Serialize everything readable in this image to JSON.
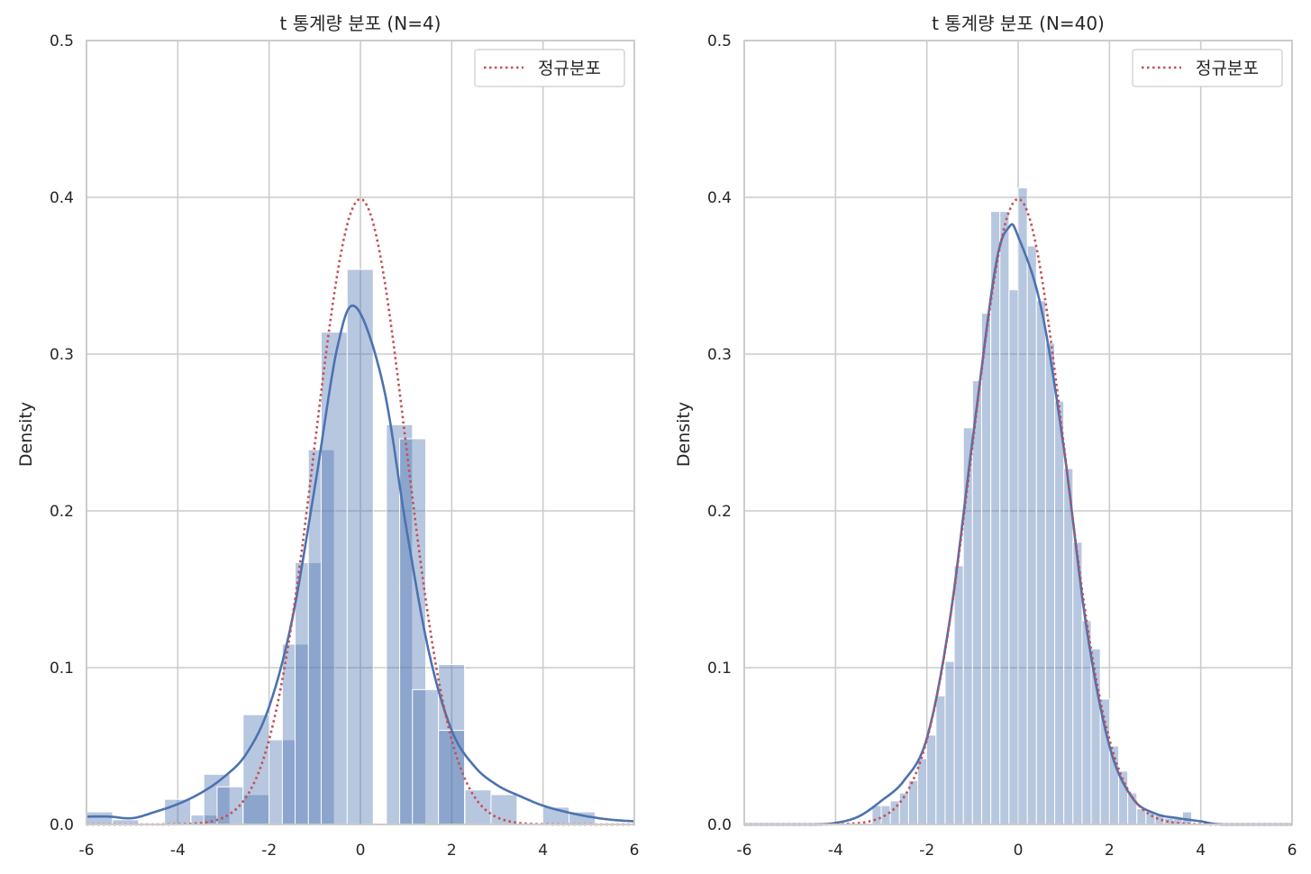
{
  "chart_data": [
    {
      "type": "histogram",
      "title": "t 통계량 분포 (N=4)",
      "xlabel": "",
      "ylabel": "Density",
      "xlim": [
        -6,
        6
      ],
      "ylim": [
        0,
        0.5
      ],
      "xticks": [
        "-6",
        "-4",
        "-2",
        "0",
        "2",
        "4",
        "6"
      ],
      "yticks": [
        "0.0",
        "0.1",
        "0.2",
        "0.3",
        "0.4",
        "0.5"
      ],
      "grid": true,
      "legend": {
        "position": "top-right",
        "entries": [
          "정규분포"
        ]
      },
      "histogram": {
        "bin_width": 0.5714,
        "bars": [
          {
            "x0": -6.0,
            "density": 0.008
          },
          {
            "x0": -5.43,
            "density": 0.003
          },
          {
            "x0": -4.29,
            "density": 0.016
          },
          {
            "x0": -3.71,
            "density": 0.006
          },
          {
            "x0": -3.43,
            "density": 0.032
          },
          {
            "x0": -3.14,
            "density": 0.024
          },
          {
            "x0": -2.57,
            "density": 0.019
          },
          {
            "x0": -2.57,
            "density": 0.07
          },
          {
            "x0": -2.0,
            "density": 0.054
          },
          {
            "x0": -1.71,
            "density": 0.115
          },
          {
            "x0": -1.43,
            "density": 0.167
          },
          {
            "x0": -1.14,
            "density": 0.239
          },
          {
            "x0": -0.86,
            "density": 0.314
          },
          {
            "x0": -0.29,
            "density": 0.354
          },
          {
            "x0": 0.57,
            "density": 0.255
          },
          {
            "x0": 0.86,
            "density": 0.246
          },
          {
            "x0": 1.14,
            "density": 0.086
          },
          {
            "x0": 1.71,
            "density": 0.102
          },
          {
            "x0": 1.71,
            "density": 0.06
          },
          {
            "x0": 2.29,
            "density": 0.022
          },
          {
            "x0": 2.86,
            "density": 0.019
          },
          {
            "x0": 4.0,
            "density": 0.011
          },
          {
            "x0": 4.57,
            "density": 0.008
          }
        ]
      },
      "series": [
        {
          "name": "",
          "style": "solid",
          "color": "#4c72b0",
          "x": [
            -6,
            -5.5,
            -5,
            -4.5,
            -4,
            -3.5,
            -3,
            -2.5,
            -2,
            -1.5,
            -1,
            -0.5,
            -0.1,
            0.5,
            1,
            1.5,
            2,
            2.5,
            3,
            3.5,
            4,
            4.5,
            5,
            5.5,
            6
          ],
          "y": [
            0.005,
            0.005,
            0.004,
            0.008,
            0.013,
            0.02,
            0.03,
            0.045,
            0.075,
            0.13,
            0.215,
            0.305,
            0.33,
            0.28,
            0.19,
            0.11,
            0.06,
            0.037,
            0.025,
            0.018,
            0.012,
            0.008,
            0.005,
            0.003,
            0.002
          ]
        },
        {
          "name": "정규분포",
          "style": "dotted",
          "color": "#c44e52",
          "function": "normal_pdf",
          "mu": 0,
          "sigma": 1
        }
      ]
    },
    {
      "type": "histogram",
      "title": "t 통계량 분포 (N=40)",
      "xlabel": "",
      "ylabel": "Density",
      "xlim": [
        -6,
        6
      ],
      "ylim": [
        0,
        0.5
      ],
      "xticks": [
        "-6",
        "-4",
        "-2",
        "0",
        "2",
        "4",
        "6"
      ],
      "yticks": [
        "0.0",
        "0.1",
        "0.2",
        "0.3",
        "0.4",
        "0.5"
      ],
      "grid": true,
      "legend": {
        "position": "top-right",
        "entries": [
          "정규분포"
        ]
      },
      "histogram": {
        "bin_width": 0.2,
        "bars": [
          {
            "x0": -3.2,
            "density": 0.012
          },
          {
            "x0": -3.0,
            "density": 0.012
          },
          {
            "x0": -2.8,
            "density": 0.015
          },
          {
            "x0": -2.6,
            "density": 0.02
          },
          {
            "x0": -2.4,
            "density": 0.028
          },
          {
            "x0": -2.2,
            "density": 0.042
          },
          {
            "x0": -2.0,
            "density": 0.057
          },
          {
            "x0": -1.8,
            "density": 0.082
          },
          {
            "x0": -1.6,
            "density": 0.104
          },
          {
            "x0": -1.4,
            "density": 0.165
          },
          {
            "x0": -1.2,
            "density": 0.253
          },
          {
            "x0": -1.0,
            "density": 0.283
          },
          {
            "x0": -0.8,
            "density": 0.326
          },
          {
            "x0": -0.6,
            "density": 0.391
          },
          {
            "x0": -0.4,
            "density": 0.391
          },
          {
            "x0": -0.2,
            "density": 0.341
          },
          {
            "x0": 0.0,
            "density": 0.406
          },
          {
            "x0": 0.2,
            "density": 0.369
          },
          {
            "x0": 0.4,
            "density": 0.334
          },
          {
            "x0": 0.6,
            "density": 0.307
          },
          {
            "x0": 0.8,
            "density": 0.27
          },
          {
            "x0": 1.0,
            "density": 0.227
          },
          {
            "x0": 1.2,
            "density": 0.18
          },
          {
            "x0": 1.4,
            "density": 0.13
          },
          {
            "x0": 1.6,
            "density": 0.112
          },
          {
            "x0": 1.8,
            "density": 0.08
          },
          {
            "x0": 2.0,
            "density": 0.05
          },
          {
            "x0": 2.2,
            "density": 0.034
          },
          {
            "x0": 2.4,
            "density": 0.02
          },
          {
            "x0": 2.6,
            "density": 0.01
          },
          {
            "x0": 2.8,
            "density": 0.008
          },
          {
            "x0": 3.0,
            "density": 0.006
          },
          {
            "x0": 3.2,
            "density": 0.004
          },
          {
            "x0": 3.4,
            "density": 0.004
          },
          {
            "x0": 3.6,
            "density": 0.008
          }
        ]
      },
      "series": [
        {
          "name": "",
          "style": "solid",
          "color": "#4c72b0",
          "x": [
            -6,
            -4.5,
            -4,
            -3.5,
            -3,
            -2.5,
            -2,
            -1.5,
            -1,
            -0.5,
            -0.2,
            0,
            0.5,
            1,
            1.5,
            2,
            2.5,
            3,
            3.5,
            4,
            4.5,
            6
          ],
          "y": [
            0.0,
            0.0,
            0.001,
            0.005,
            0.015,
            0.028,
            0.055,
            0.13,
            0.245,
            0.355,
            0.381,
            0.375,
            0.33,
            0.24,
            0.125,
            0.05,
            0.017,
            0.007,
            0.004,
            0.002,
            0.0,
            0.0
          ]
        },
        {
          "name": "정규분포",
          "style": "dotted",
          "color": "#c44e52",
          "function": "normal_pdf",
          "mu": 0,
          "sigma": 1
        }
      ]
    }
  ]
}
